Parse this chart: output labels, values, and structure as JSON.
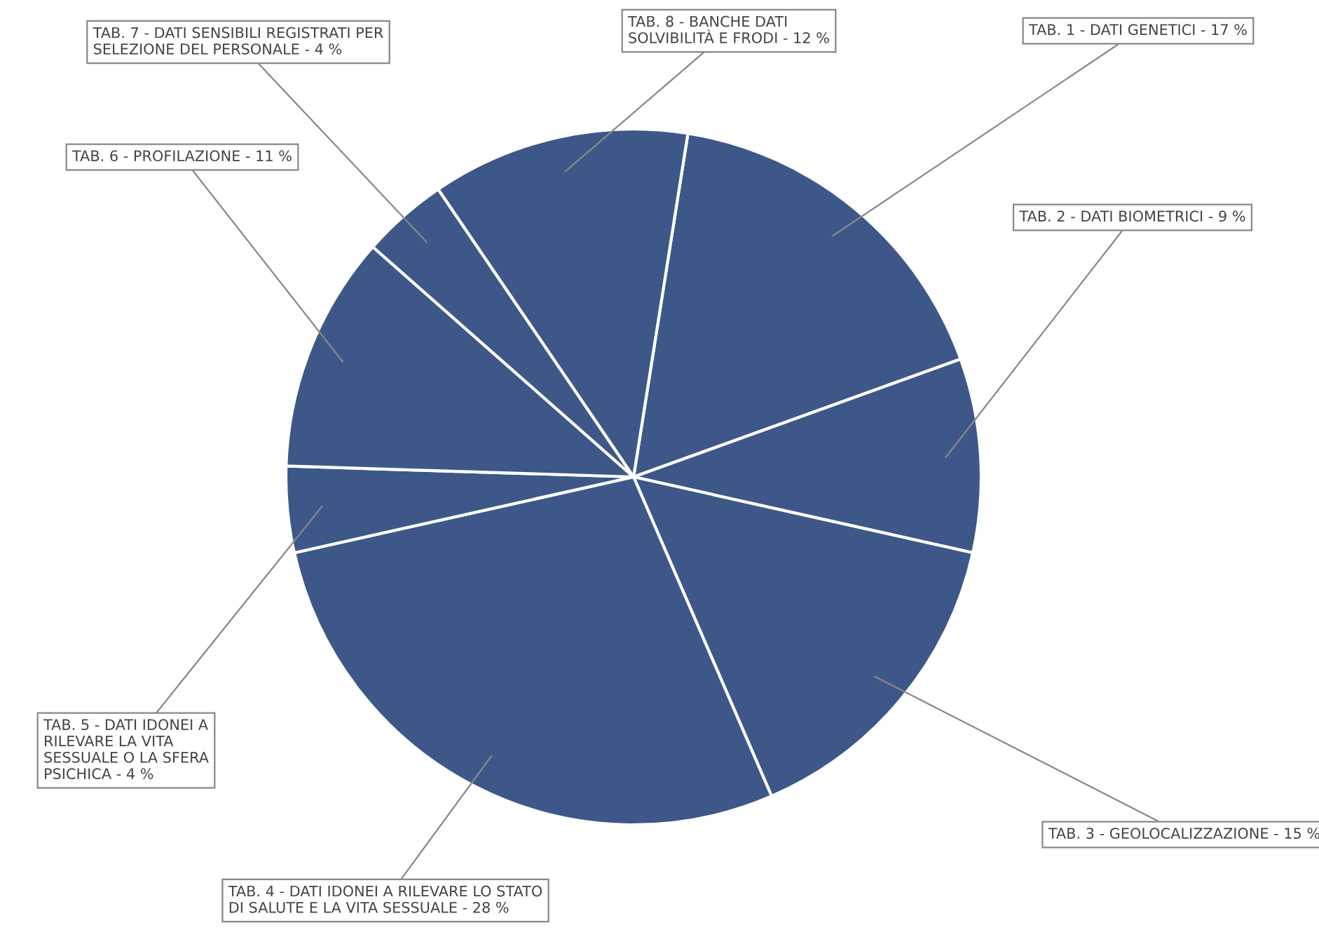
{
  "chart_data": {
    "type": "pie",
    "categories": [
      "TAB. 1 - DATI GENETICI - 17 %",
      "TAB. 2 - DATI BIOMETRICI - 9 %",
      "TAB. 3 - GEOLOCALIZZAZIONE - 15 %",
      "TAB. 4 - DATI IDONEI A RILEVARE LO STATO\nDI SALUTE E LA VITA SESSUALE - 28 %",
      "TAB. 5 - DATI IDONEI A\nRILEVARE LA VITA\nSESSUALE O LA SFERA\nPSICHICA - 4 %",
      "TAB. 6 - PROFILAZIONE - 11 %",
      "TAB. 7 - DATI SENSIBILI REGISTRATI PER\nSELEZIONE DEL PERSONALE - 4 %",
      "TAB. 8 - BANCHE DATI\nSOLVIBILITÀ E FRODI - 12 %"
    ],
    "values": [
      17,
      9,
      15,
      28,
      4,
      11,
      4,
      12
    ],
    "colors": [
      "#3d5888",
      "#3d5888",
      "#3d5888",
      "#3d5888",
      "#3d5888",
      "#3d5888",
      "#3d5888",
      "#3d5888"
    ],
    "legend": false
  }
}
